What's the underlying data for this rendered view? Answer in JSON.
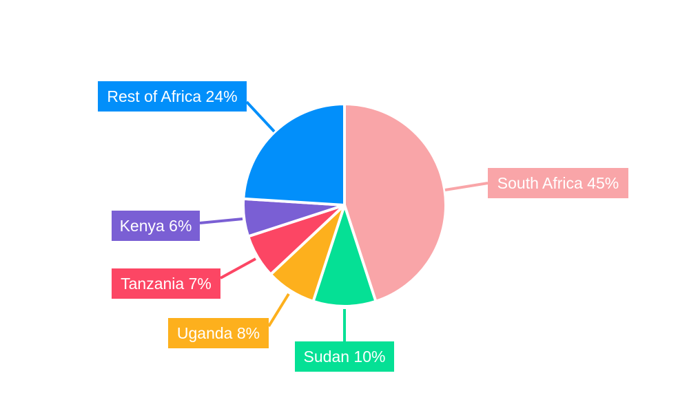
{
  "chart_data": {
    "type": "pie",
    "categories": [
      "South Africa",
      "Sudan",
      "Uganda",
      "Tanzania",
      "Kenya",
      "Rest of Africa"
    ],
    "values": [
      45,
      10,
      8,
      7,
      6,
      24
    ],
    "labels": [
      "South Africa 45%",
      "Sudan 10%",
      "Uganda 8%",
      "Tanzania 7%",
      "Kenya 6%",
      "Rest of Africa 24%"
    ],
    "colors": [
      "#f9a5a8",
      "#05e095",
      "#fdb01d",
      "#fc4664",
      "#7a5fd4",
      "#028ffa"
    ],
    "start_angle_deg": 0,
    "direction": "clockwise",
    "legend": "none"
  }
}
